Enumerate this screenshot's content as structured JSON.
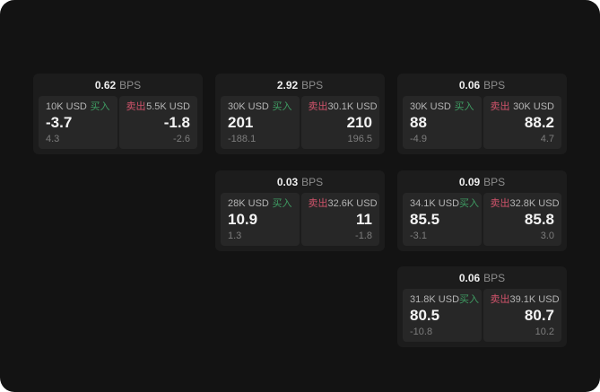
{
  "labels": {
    "bps": "BPS",
    "buy": "买入",
    "sell": "卖出"
  },
  "colors": {
    "buy": "#3f9d63",
    "sell": "#d0536b",
    "screen_bg": "#131313",
    "card_bg": "#1c1c1c",
    "panel_bg": "#272727"
  },
  "cards": [
    {
      "bps": "0.62",
      "buy": {
        "amount": "10K USD",
        "value": "-3.7",
        "sub": "4.3"
      },
      "sell": {
        "amount": "5.5K USD",
        "value": "-1.8",
        "sub": "-2.6"
      }
    },
    {
      "bps": "2.92",
      "buy": {
        "amount": "30K USD",
        "value": "201",
        "sub": "-188.1"
      },
      "sell": {
        "amount": "30.1K USD",
        "value": "210",
        "sub": "196.5"
      }
    },
    {
      "bps": "0.06",
      "buy": {
        "amount": "30K USD",
        "value": "88",
        "sub": "-4.9"
      },
      "sell": {
        "amount": "30K USD",
        "value": "88.2",
        "sub": "4.7"
      }
    },
    {
      "bps": "0.03",
      "buy": {
        "amount": "28K USD",
        "value": "10.9",
        "sub": "1.3"
      },
      "sell": {
        "amount": "32.6K USD",
        "value": "11",
        "sub": "-1.8"
      }
    },
    {
      "bps": "0.09",
      "buy": {
        "amount": "34.1K USD",
        "value": "85.5",
        "sub": "-3.1"
      },
      "sell": {
        "amount": "32.8K USD",
        "value": "85.8",
        "sub": "3.0"
      }
    },
    {
      "bps": "0.06",
      "buy": {
        "amount": "31.8K USD",
        "value": "80.5",
        "sub": "-10.8"
      },
      "sell": {
        "amount": "39.1K USD",
        "value": "80.7",
        "sub": "10.2"
      }
    }
  ]
}
